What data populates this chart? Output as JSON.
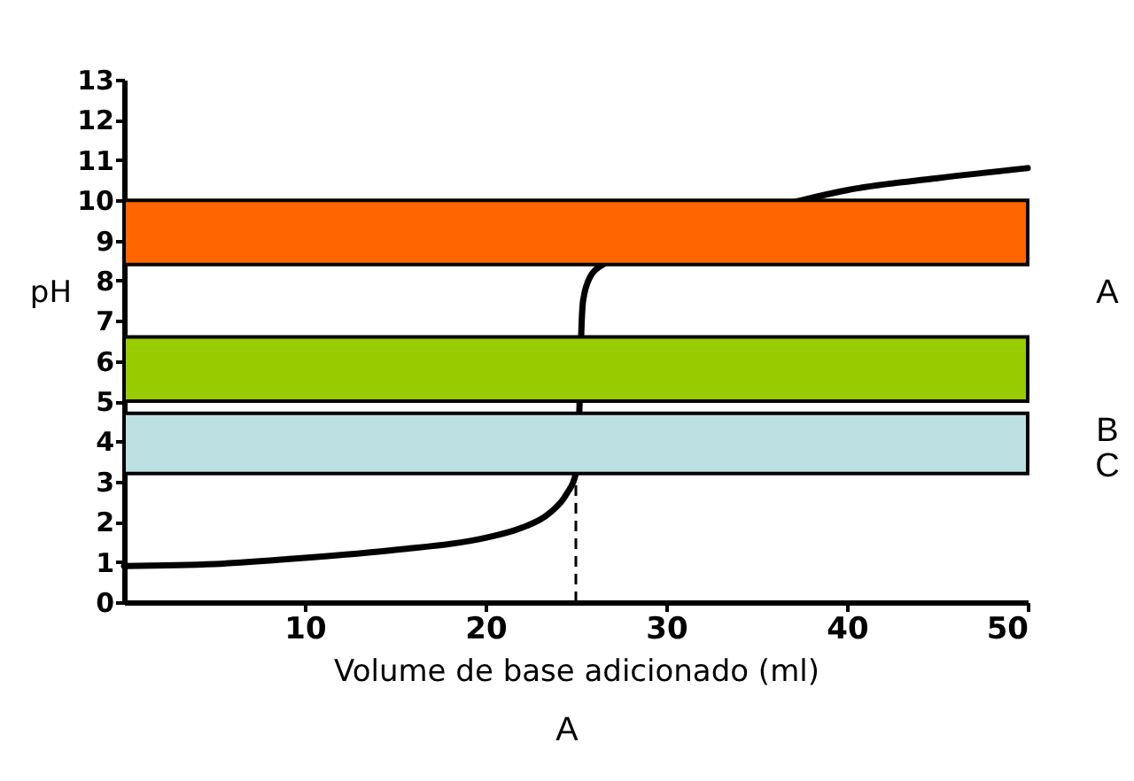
{
  "chart_data": {
    "type": "line",
    "xlabel": "Volume de base adicionado (ml)",
    "ylabel": "pH",
    "x": [
      0,
      5,
      10,
      15,
      20,
      22,
      23.5,
      24.5,
      25,
      25.2,
      25.3,
      25.4,
      25.8,
      26.5,
      37.5,
      40,
      45,
      50
    ],
    "series": [
      {
        "color": "#000000",
        "values": [
          0.9,
          0.95,
          1.1,
          1.3,
          1.6,
          1.85,
          2.2,
          2.7,
          3.2,
          4.85,
          6.7,
          7.5,
          8.1,
          8.4,
          10.0,
          10.25,
          10.55,
          10.8
        ]
      }
    ],
    "xlim": [
      0,
      50
    ],
    "xticks": [
      10,
      20,
      30,
      40,
      50
    ],
    "ylim": [
      0,
      13
    ],
    "yticks": [
      0,
      1,
      2,
      3,
      4,
      5,
      6,
      7,
      8,
      9,
      10,
      11,
      12,
      13
    ],
    "grid": false,
    "marker": "none",
    "line_style": "solid",
    "bands": [
      {
        "axis": "y",
        "from": 8.4,
        "to": 10,
        "color": "#ff6600"
      },
      {
        "axis": "y",
        "from": 5.0,
        "to": 6.6,
        "color": "#99cc00"
      },
      {
        "axis": "y",
        "from": 3.2,
        "to": 4.7,
        "color": "#bde0e3"
      }
    ],
    "ref_lines": [
      {
        "axis": "x",
        "value": 25,
        "line_style": "dashed"
      }
    ],
    "annotations": [
      "A",
      "B",
      "C",
      "A"
    ]
  }
}
